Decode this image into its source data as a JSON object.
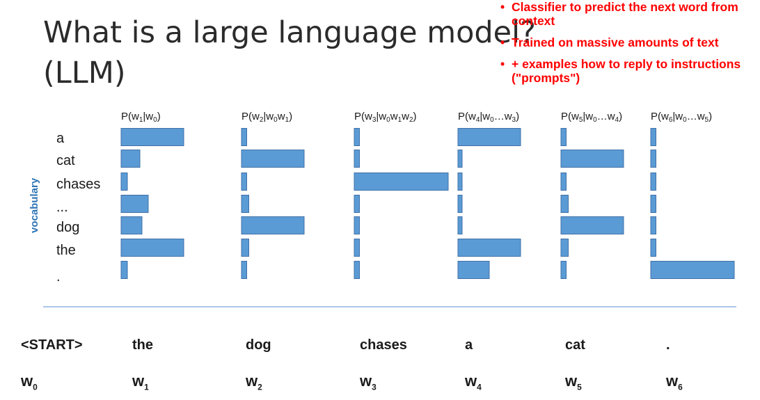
{
  "slide": {
    "title_line1": "What is a large language model?",
    "title_line2": "(LLM)",
    "bullets": [
      "Classifier to predict the next word from context",
      "Trained on massive amounts of text",
      "+ examples how to reply to instructions (\"prompts\")"
    ]
  },
  "colors": {
    "bar": "#5b9bd5",
    "bar_stroke": "#3f70a8",
    "bullet": "#ff0000",
    "axis_label": "#2e74b5",
    "divider": "#8db3e2"
  },
  "chart_data": {
    "type": "bar",
    "orientation": "horizontal",
    "ylabel": "vocabulary",
    "categories": [
      "a",
      "cat",
      "chases",
      "...",
      "dog",
      "the",
      "."
    ],
    "series": [
      {
        "name": "P(w1|w0)",
        "label_main": "P(w",
        "label_sub": "1",
        "label_mid": "|w",
        "label_sub2": "0",
        "label_end": ")",
        "values": [
          0.6,
          0.18,
          0.06,
          0.26,
          0.2,
          0.6,
          0.06
        ]
      },
      {
        "name": "P(w2|w0w1)",
        "label_main": "P(w",
        "label_sub": "2",
        "label_mid": "|w",
        "label_sub2": "0",
        "label_mid2": "w",
        "label_sub3": "1",
        "label_end": ")",
        "values": [
          0.05,
          0.6,
          0.05,
          0.07,
          0.6,
          0.07,
          0.05
        ]
      },
      {
        "name": "P(w3|w0w1w2)",
        "label_main": "P(w",
        "label_sub": "3",
        "label_mid": "|w",
        "label_sub2": "0",
        "label_mid2": "w",
        "label_sub3": "1",
        "label_mid3": "w",
        "label_sub4": "2",
        "label_end": ")",
        "values": [
          0.05,
          0.05,
          0.9,
          0.05,
          0.05,
          0.05,
          0.05
        ]
      },
      {
        "name": "P(w4|w0…w3)",
        "label_main": "P(w",
        "label_sub": "4",
        "label_mid": "|w",
        "label_sub2": "0",
        "label_mid2": "…w",
        "label_sub3": "3",
        "label_end": ")",
        "values": [
          0.6,
          0.04,
          0.04,
          0.04,
          0.04,
          0.6,
          0.3
        ]
      },
      {
        "name": "P(w5|w0…w4)",
        "label_main": "P(w",
        "label_sub": "5",
        "label_mid": "|w",
        "label_sub2": "0",
        "label_mid2": "…w",
        "label_sub3": "4",
        "label_end": ")",
        "values": [
          0.05,
          0.6,
          0.05,
          0.07,
          0.6,
          0.07,
          0.05
        ]
      },
      {
        "name": "P(w6|w0…w5)",
        "label_main": "P(w",
        "label_sub": "6",
        "label_mid": "|w",
        "label_sub2": "0",
        "label_mid2": "…w",
        "label_sub3": "5",
        "label_end": ")",
        "values": [
          0.05,
          0.05,
          0.05,
          0.05,
          0.05,
          0.05,
          0.8
        ]
      }
    ],
    "xlim": [
      0,
      1
    ]
  },
  "sequence": {
    "tokens": [
      "<START>",
      "the",
      "dog",
      "chases",
      "a",
      "cat",
      "."
    ],
    "positions": [
      {
        "w": "w",
        "sub": "0"
      },
      {
        "w": "w",
        "sub": "1"
      },
      {
        "w": "w",
        "sub": "2"
      },
      {
        "w": "w",
        "sub": "3"
      },
      {
        "w": "w",
        "sub": "4"
      },
      {
        "w": "w",
        "sub": "5"
      },
      {
        "w": "w",
        "sub": "6"
      }
    ]
  }
}
